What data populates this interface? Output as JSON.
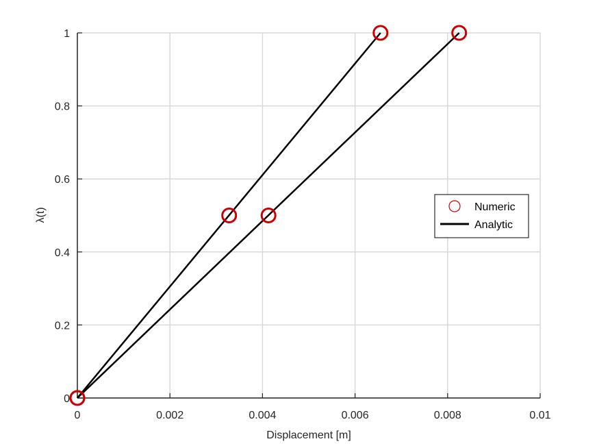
{
  "chart_data": {
    "type": "line",
    "title": "",
    "xlabel": "Displacement [m]",
    "ylabel": "λ(t)",
    "xlim": [
      0,
      0.01
    ],
    "ylim": [
      0,
      1
    ],
    "grid": true,
    "legend_position": "right",
    "x_ticks": [
      0,
      0.002,
      0.004,
      0.006,
      0.008,
      0.01
    ],
    "x_tick_labels": [
      "0",
      "0.002",
      "0.004",
      "0.006",
      "0.008",
      "0.01"
    ],
    "y_ticks": [
      0,
      0.2,
      0.4,
      0.6,
      0.8,
      1
    ],
    "y_tick_labels": [
      "0",
      "0.2",
      "0.4",
      "0.6",
      "0.8",
      "1"
    ],
    "legend": [
      {
        "label": "Numeric",
        "marker": "circle",
        "color": "#cc0000"
      },
      {
        "label": "Analytic",
        "marker": "line",
        "color": "#000000"
      }
    ],
    "series": [
      {
        "name": "Numeric",
        "kind": "markers",
        "color": "#cc0000",
        "points": [
          [
            0,
            0
          ],
          [
            0.00328,
            0.5
          ],
          [
            0.00655,
            1
          ]
        ]
      },
      {
        "name": "Numeric",
        "kind": "markers",
        "color": "#cc0000",
        "points": [
          [
            0,
            0
          ],
          [
            0.00413,
            0.5
          ],
          [
            0.00825,
            1
          ]
        ]
      },
      {
        "name": "Analytic",
        "kind": "line",
        "color": "#000000",
        "points": [
          [
            0,
            0
          ],
          [
            0.00655,
            1
          ]
        ]
      },
      {
        "name": "Analytic",
        "kind": "line",
        "color": "#000000",
        "points": [
          [
            0,
            0
          ],
          [
            0.00825,
            1
          ]
        ]
      }
    ]
  }
}
